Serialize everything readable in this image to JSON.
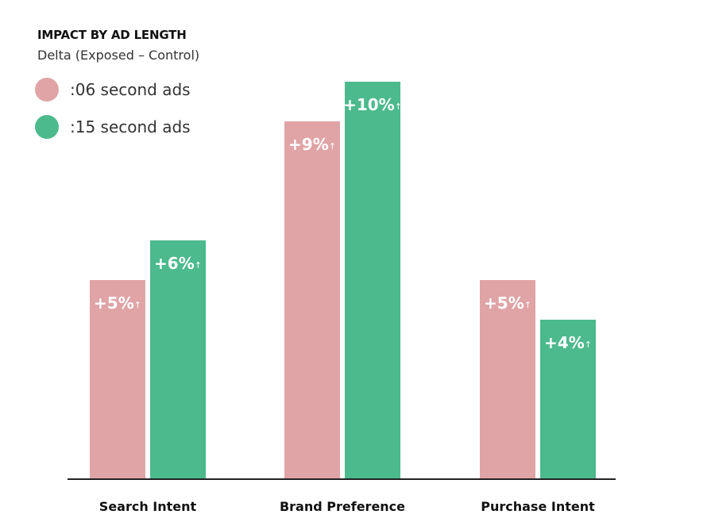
{
  "chart_data": {
    "type": "bar",
    "title": "IMPACT BY AD LENGTH",
    "subtitle": "Delta (Exposed – Control)",
    "xlabel": "",
    "ylabel": "",
    "categories": [
      "Search Intent",
      "Brand Preference",
      "Purchase Intent"
    ],
    "series": [
      {
        "name": ":06 second ads",
        "color": "#e0a4a6",
        "values": [
          5,
          9,
          5
        ],
        "labels": [
          "+5%",
          "+9%",
          "+5%"
        ]
      },
      {
        "name": ":15 second ads",
        "color": "#4cba8c",
        "values": [
          6,
          10,
          4
        ],
        "labels": [
          "+6%",
          "+10%",
          "+4%"
        ]
      }
    ],
    "ylim": [
      0,
      10
    ],
    "grid": false,
    "legend": "top-left",
    "label_suffix_icon": "up-arrow-icon"
  }
}
